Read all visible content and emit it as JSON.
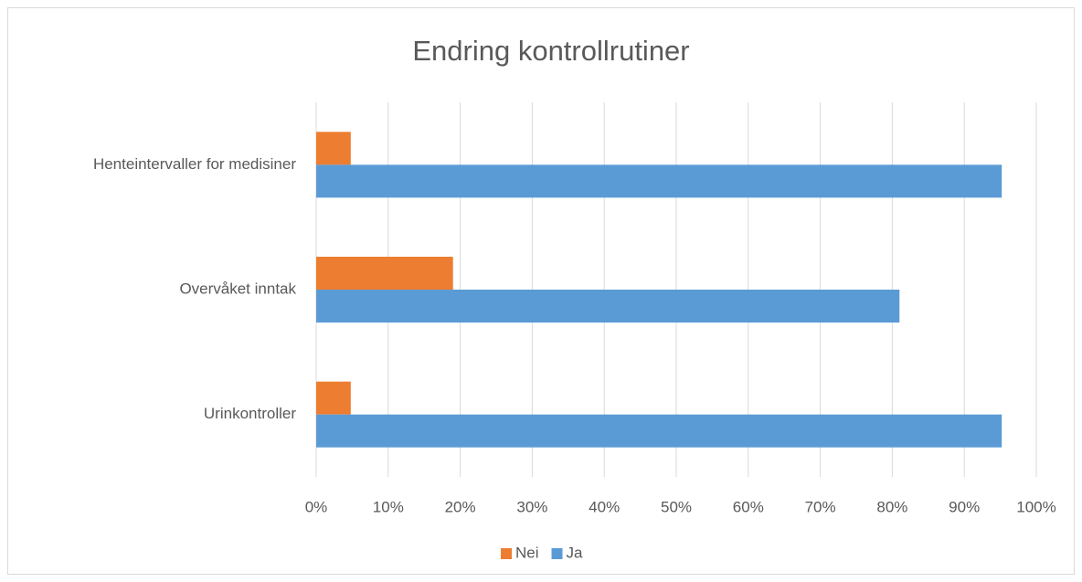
{
  "chart_data": {
    "type": "bar",
    "orientation": "horizontal",
    "title": "Endring kontrollrutiner",
    "categories": [
      "Henteintervaller for medisiner",
      "Overvåket inntak",
      "Urinkontroller"
    ],
    "series": [
      {
        "name": "Nei",
        "color": "#ed7d31",
        "values": [
          4.8,
          19,
          4.8
        ]
      },
      {
        "name": "Ja",
        "color": "#5b9bd5",
        "values": [
          95.2,
          81,
          95.2
        ]
      }
    ],
    "xlim": [
      0,
      100
    ],
    "xticks": [
      {
        "value": 0,
        "label": "0%"
      },
      {
        "value": 10,
        "label": "10%"
      },
      {
        "value": 20,
        "label": "20%"
      },
      {
        "value": 30,
        "label": "30%"
      },
      {
        "value": 40,
        "label": "40%"
      },
      {
        "value": 50,
        "label": "50%"
      },
      {
        "value": 60,
        "label": "60%"
      },
      {
        "value": 70,
        "label": "70%"
      },
      {
        "value": 80,
        "label": "80%"
      },
      {
        "value": 90,
        "label": "90%"
      },
      {
        "value": 100,
        "label": "100%"
      }
    ],
    "grid": true,
    "legend": "bottom"
  }
}
